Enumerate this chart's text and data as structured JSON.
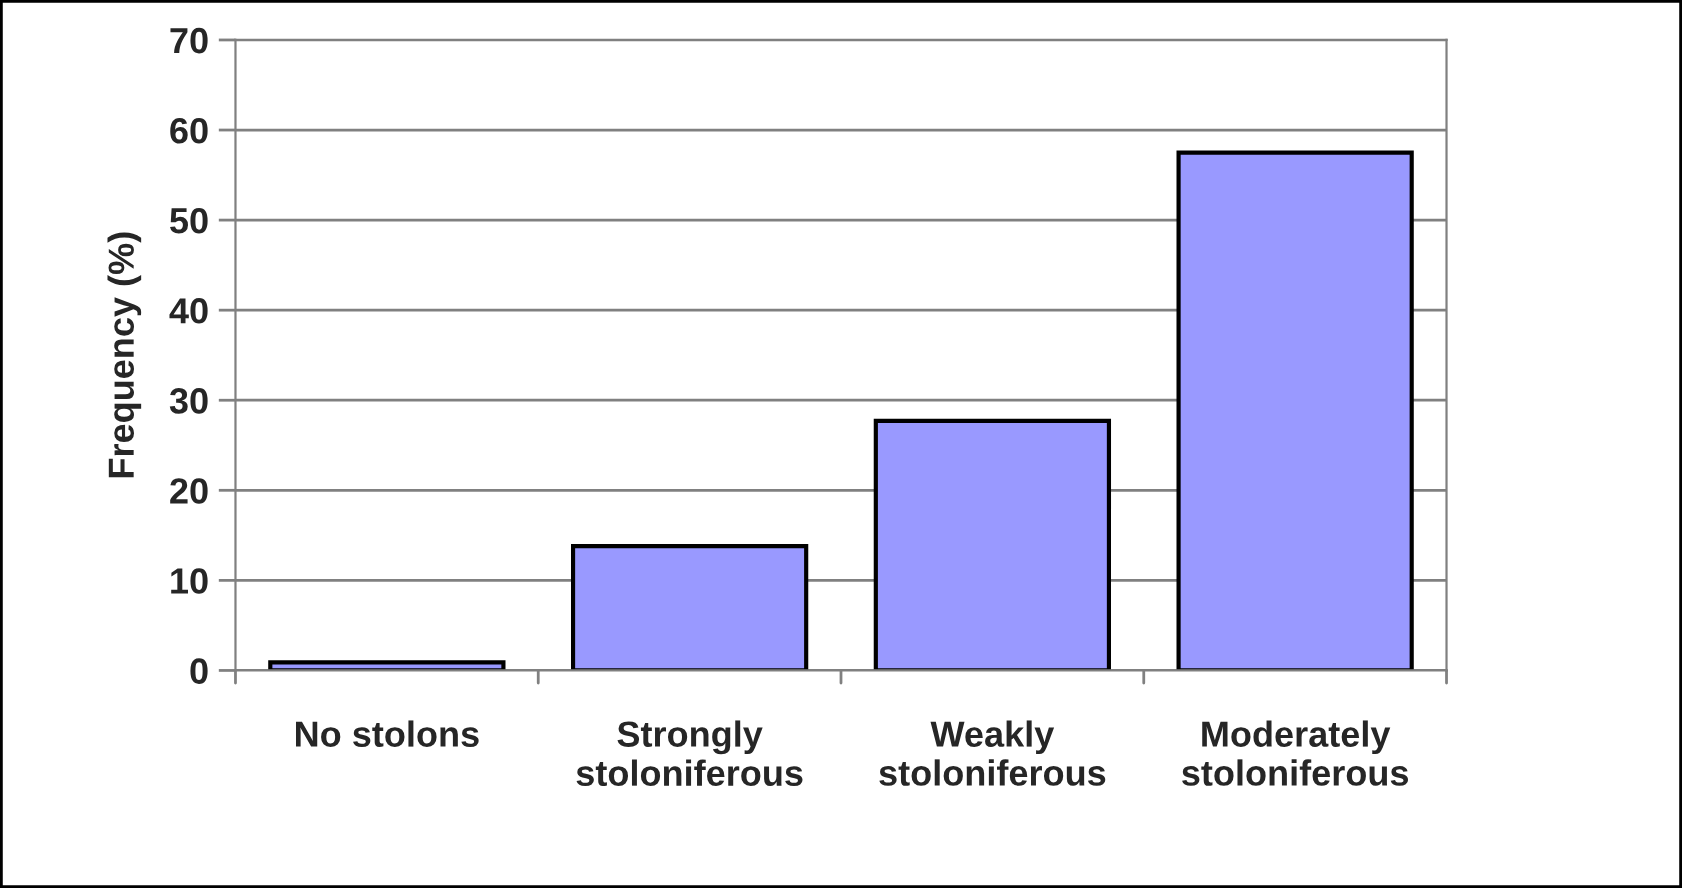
{
  "chart_data": {
    "type": "bar",
    "ylabel": "Frequency (%)",
    "categories": [
      "No stolons",
      "Strongly\nstoloniferous",
      "Weakly\nstoloniferous",
      "Moderately\nstoloniferous"
    ],
    "values": [
      0.9,
      13.8,
      27.7,
      57.5
    ],
    "color": "#9999ff",
    "ylim": [
      0,
      70
    ],
    "yticks": [
      0,
      10,
      20,
      30,
      40,
      50,
      60,
      70
    ],
    "grid": "y"
  }
}
